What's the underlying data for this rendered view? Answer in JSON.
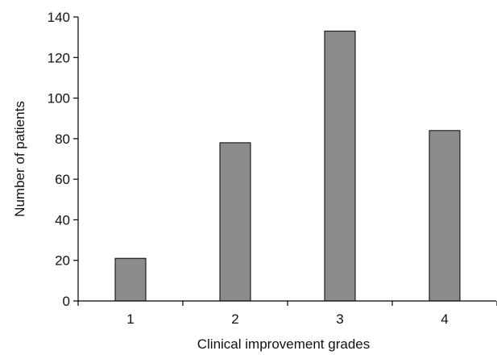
{
  "chart_data": {
    "type": "bar",
    "title": "",
    "xlabel": "Clinical improvement grades",
    "ylabel": "Number of patients",
    "categories": [
      "1",
      "2",
      "3",
      "4"
    ],
    "values": [
      21,
      78,
      133,
      84
    ],
    "ylim": [
      0,
      140
    ],
    "yticks": [
      0,
      20,
      40,
      60,
      80,
      100,
      120,
      140
    ],
    "grid": false,
    "legend": "none",
    "bar_color": "#8c8c8c",
    "bar_edge_color": "#000000"
  }
}
